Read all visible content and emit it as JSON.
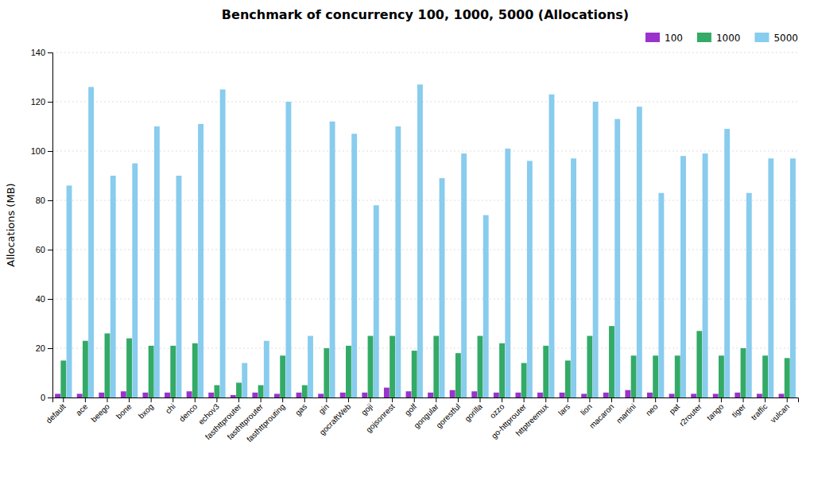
{
  "chart_data": {
    "type": "bar",
    "title": "Benchmark of concurrency 100, 1000, 5000 (Allocations)",
    "ylabel": "Allocations (MB)",
    "categories": [
      "default",
      "ace",
      "beego",
      "bone",
      "bxog",
      "chi",
      "denco",
      "echov3",
      "fasthttprouter",
      "fasthttprouter",
      "fasthttprouting",
      "gas",
      "gin",
      "gocraftWeb",
      "goji",
      "gojsonrest",
      "golf",
      "gongular",
      "gorestful",
      "gorilla",
      "ozzo",
      "go-httprouter",
      "httptreemux",
      "lars",
      "lion",
      "macaron",
      "martini",
      "neo",
      "pat",
      "r2router",
      "tango",
      "tiger",
      "traffic",
      "vulcan"
    ],
    "series": [
      {
        "name": "100",
        "color": "#9933cc",
        "values": [
          1.5,
          1.5,
          2.0,
          2.5,
          2.0,
          2.0,
          2.5,
          2.0,
          1.0,
          2.0,
          1.5,
          2.0,
          1.5,
          2.0,
          2.0,
          4.0,
          2.5,
          2.0,
          3.0,
          2.5,
          2.0,
          2.0,
          2.0,
          2.0,
          1.5,
          2.0,
          3.0,
          2.0,
          1.5,
          1.5,
          1.5,
          2.0,
          1.5,
          1.5
        ]
      },
      {
        "name": "1000",
        "color": "#33aa66",
        "values": [
          15,
          23,
          26,
          24,
          21,
          21,
          22,
          5,
          6,
          5,
          17,
          5,
          20,
          21,
          25,
          25,
          19,
          25,
          18,
          25,
          22,
          14,
          21,
          15,
          25,
          29,
          17,
          17,
          17,
          27,
          17,
          20,
          17,
          16
        ]
      },
      {
        "name": "5000",
        "color": "#88ccee",
        "values": [
          86,
          126,
          90,
          95,
          110,
          90,
          111,
          125,
          14,
          23,
          120,
          25,
          112,
          107,
          78,
          110,
          127,
          89,
          99,
          74,
          101,
          96,
          123,
          97,
          120,
          113,
          118,
          83,
          98,
          99,
          109,
          83,
          97,
          97
        ]
      }
    ],
    "ylim": [
      0,
      140
    ],
    "yticks": [
      0,
      20,
      40,
      60,
      80,
      100,
      120,
      140
    ],
    "grid": true,
    "legend": "upper right"
  }
}
